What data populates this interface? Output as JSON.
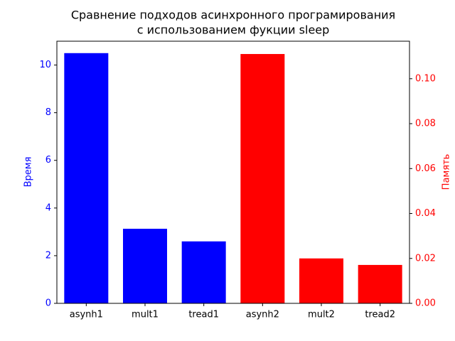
{
  "chart_data": {
    "type": "bar",
    "title": [
      "Сравнение подходов асинхронного програмирования",
      "с использованием фукции sleep"
    ],
    "categories": [
      "asynh1",
      "mult1",
      "tread1",
      "asynh2",
      "mult2",
      "tread2"
    ],
    "series": [
      {
        "color": "#0000ff",
        "axis": "y",
        "values": [
          10.5,
          3.13,
          2.6,
          null,
          null,
          null
        ]
      },
      {
        "color": "#ff0000",
        "axis": "y2",
        "values": [
          null,
          null,
          null,
          0.111,
          0.02,
          0.0171
        ]
      }
    ],
    "ylabel": "Время",
    "y2label": "Память",
    "ylim": [
      0,
      11.0
    ],
    "yticks": [
      0,
      2,
      4,
      6,
      8,
      10
    ],
    "y2lim": [
      0,
      0.1167
    ],
    "y2ticks": [
      {
        "value": 0,
        "label": "0.00"
      },
      {
        "value": 0.02,
        "label": "0.02"
      },
      {
        "value": 0.04,
        "label": "0.04"
      },
      {
        "value": 0.06,
        "label": "0.06"
      },
      {
        "value": 0.08,
        "label": "0.08"
      },
      {
        "value": 0.1,
        "label": "0.10"
      }
    ],
    "grid": false
  }
}
